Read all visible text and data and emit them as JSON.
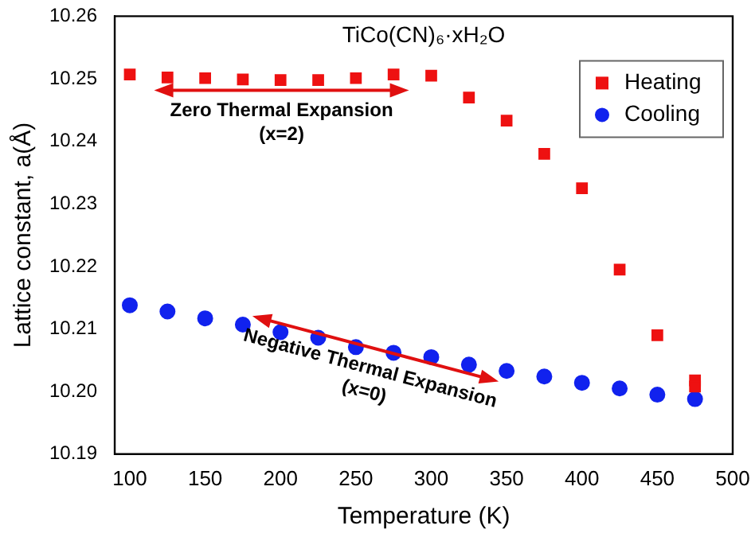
{
  "chart_data": {
    "type": "scatter",
    "xlabel": "Temperature (K)",
    "ylabel": "Lattice constant, a(Å)",
    "xlim": [
      90,
      500
    ],
    "xticks": [
      100,
      150,
      200,
      250,
      300,
      350,
      400,
      450,
      500
    ],
    "ylim": [
      10.19,
      10.26
    ],
    "yticks": [
      10.19,
      {
        "value": 10.2,
        "label": "10.20"
      },
      10.21,
      10.22,
      10.23,
      10.24,
      10.25,
      10.26
    ],
    "grid": false,
    "legend": "top right",
    "series": [
      {
        "name": "Heating",
        "color": "#ee1111",
        "marker": "square",
        "x": [
          100,
          125,
          150,
          175,
          200,
          225,
          250,
          275,
          300,
          325,
          350,
          375,
          400,
          425,
          450,
          475,
          475
        ],
        "values": [
          10.2507,
          10.2502,
          10.2501,
          10.2499,
          10.2498,
          10.2498,
          10.2501,
          10.2507,
          10.2505,
          10.247,
          10.2433,
          10.238,
          10.2325,
          10.2195,
          10.209,
          10.2018,
          10.2008
        ]
      },
      {
        "name": "Cooling",
        "color": "#1122ee",
        "marker": "circle",
        "x": [
          100,
          125,
          150,
          175,
          200,
          225,
          250,
          275,
          300,
          325,
          350,
          375,
          400,
          425,
          450,
          475
        ],
        "values": [
          10.2138,
          10.2128,
          10.2117,
          10.2107,
          10.2095,
          10.2086,
          10.2071,
          10.2062,
          10.2055,
          10.2043,
          10.2033,
          10.2024,
          10.2014,
          10.2005,
          10.1995,
          10.1988
        ]
      }
    ],
    "annotations": [
      "TiCo(CN)₆·xH₂O",
      "Zero Thermal Expansion\n(x=2)",
      "Negative Thermal Expansion\n(x=0)"
    ]
  }
}
